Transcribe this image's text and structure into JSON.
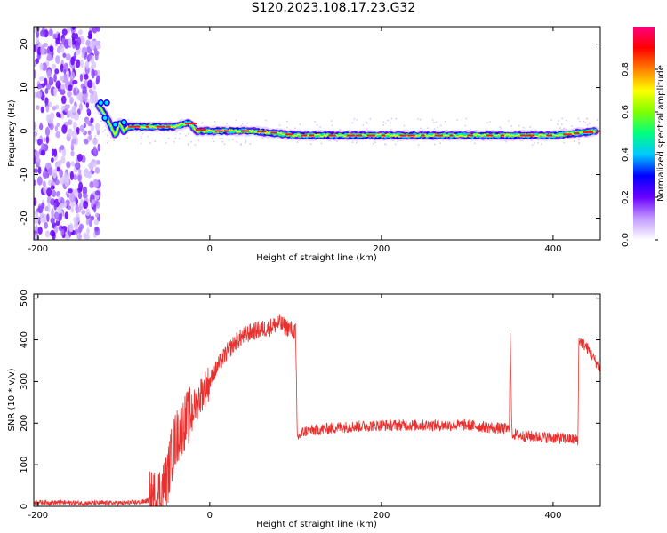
{
  "title": "S120.2023.108.17.23.G32",
  "chart_data": [
    {
      "type": "heatmap",
      "xlabel": "Height of straight line (km)",
      "ylabel": "Frequency (Hz)",
      "xlim": [
        -205,
        455
      ],
      "ylim": [
        -25,
        24
      ],
      "xticks": [
        -200,
        0,
        200,
        400
      ],
      "yticks": [
        -20,
        -10,
        0,
        10,
        20
      ],
      "colorbar": {
        "label": "Normalized spectral amplitude",
        "range": [
          0,
          1
        ],
        "ticks": [
          "0.0",
          "0.2",
          "0.4",
          "0.6",
          "0.8"
        ],
        "colormap": [
          "#ffffff",
          "#c39bff",
          "#6a00ff",
          "#0000ff",
          "#00c8ff",
          "#00ff80",
          "#80ff00",
          "#ffff00",
          "#ff8000",
          "#ff0000",
          "#ff0080"
        ]
      },
      "ridge": {
        "x": [
          -130,
          -120,
          -115,
          -110,
          -105,
          -100,
          -95,
          -90,
          -80,
          -60,
          -40,
          -25,
          -15,
          0,
          50,
          100,
          150,
          200,
          250,
          300,
          350,
          400,
          450
        ],
        "freq": [
          6,
          3,
          1,
          -1,
          2,
          0,
          1,
          1,
          1,
          1,
          1,
          2,
          0,
          0,
          0,
          -1,
          -1,
          -1,
          -1,
          -1,
          -1,
          -1,
          0
        ]
      },
      "noise_region_x": [
        -205,
        -135
      ]
    },
    {
      "type": "line",
      "xlabel": "Height of straight line (km)",
      "ylabel": "SNR (10 * v/v)",
      "xlim": [
        -205,
        455
      ],
      "ylim": [
        0,
        510
      ],
      "xticks": [
        -200,
        0,
        200,
        400
      ],
      "yticks": [
        0,
        100,
        200,
        300,
        400,
        500
      ],
      "color": "#e8312f",
      "series": [
        {
          "x": [
            -205,
            -150,
            -100,
            -80,
            -70,
            -60,
            -50,
            -45,
            -40,
            -35,
            -30,
            -20,
            -10,
            0,
            10,
            20,
            30,
            40,
            50,
            60,
            70,
            80,
            90,
            100,
            102,
            110,
            150,
            200,
            250,
            300,
            349,
            350,
            352,
            360,
            400,
            429,
            430,
            440,
            455
          ],
          "y": [
            10,
            8,
            8,
            10,
            15,
            25,
            60,
            120,
            160,
            180,
            200,
            230,
            270,
            300,
            340,
            370,
            395,
            410,
            420,
            425,
            430,
            440,
            430,
            420,
            165,
            180,
            190,
            195,
            195,
            195,
            185,
            425,
            175,
            170,
            165,
            160,
            400,
            380,
            330
          ]
        }
      ]
    }
  ]
}
